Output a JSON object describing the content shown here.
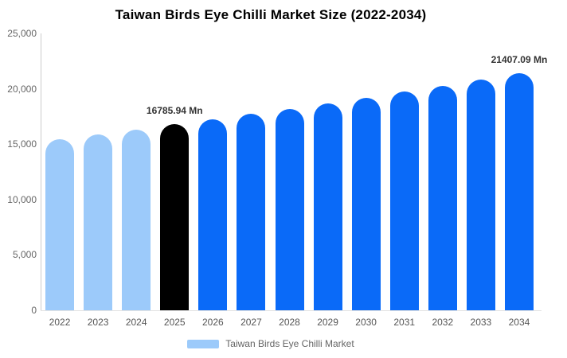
{
  "chart_data": {
    "type": "bar",
    "title": "Taiwan Birds Eye Chilli Market Size (2022-2034)",
    "unit": "Mn",
    "categories": [
      "2022",
      "2023",
      "2024",
      "2025",
      "2026",
      "2027",
      "2028",
      "2029",
      "2030",
      "2031",
      "2032",
      "2033",
      "2034"
    ],
    "values": [
      15479,
      15903,
      16338,
      16785.94,
      17246,
      17718,
      18203,
      18702,
      19214,
      19740,
      20281,
      20837,
      21407.09
    ],
    "bar_colors": [
      "#9CCAFA",
      "#9CCAFA",
      "#9CCAFA",
      "#000000",
      "#0A6AF8",
      "#0A6AF8",
      "#0A6AF8",
      "#0A6AF8",
      "#0A6AF8",
      "#0A6AF8",
      "#0A6AF8",
      "#0A6AF8",
      "#0A6AF8"
    ],
    "data_labels": [
      {
        "category": "2025",
        "text": "16785.94 Mn"
      },
      {
        "category": "2034",
        "text": "21407.09 Mn"
      }
    ],
    "y_axis": {
      "min": 0,
      "max": 25000,
      "ticks": [
        {
          "value": 0,
          "label": "0"
        },
        {
          "value": 5000,
          "label": "5,000"
        },
        {
          "value": 10000,
          "label": "10,000"
        },
        {
          "value": 15000,
          "label": "15,000"
        },
        {
          "value": 20000,
          "label": "20,000"
        },
        {
          "value": 25000,
          "label": "25,000"
        }
      ]
    },
    "grid": false,
    "legend": {
      "position": "bottom",
      "items": [
        {
          "label": "Taiwan Birds Eye Chilli Market",
          "color": "#9CCAFA"
        }
      ]
    }
  },
  "colors": {
    "background": "#FFFFFF",
    "title_text": "#000000",
    "axis_line": "#CCCCCC",
    "baseline": "#E3E3E3",
    "tick_text": "#666666",
    "data_label_text": "#333333",
    "legend_text": "#666666"
  }
}
